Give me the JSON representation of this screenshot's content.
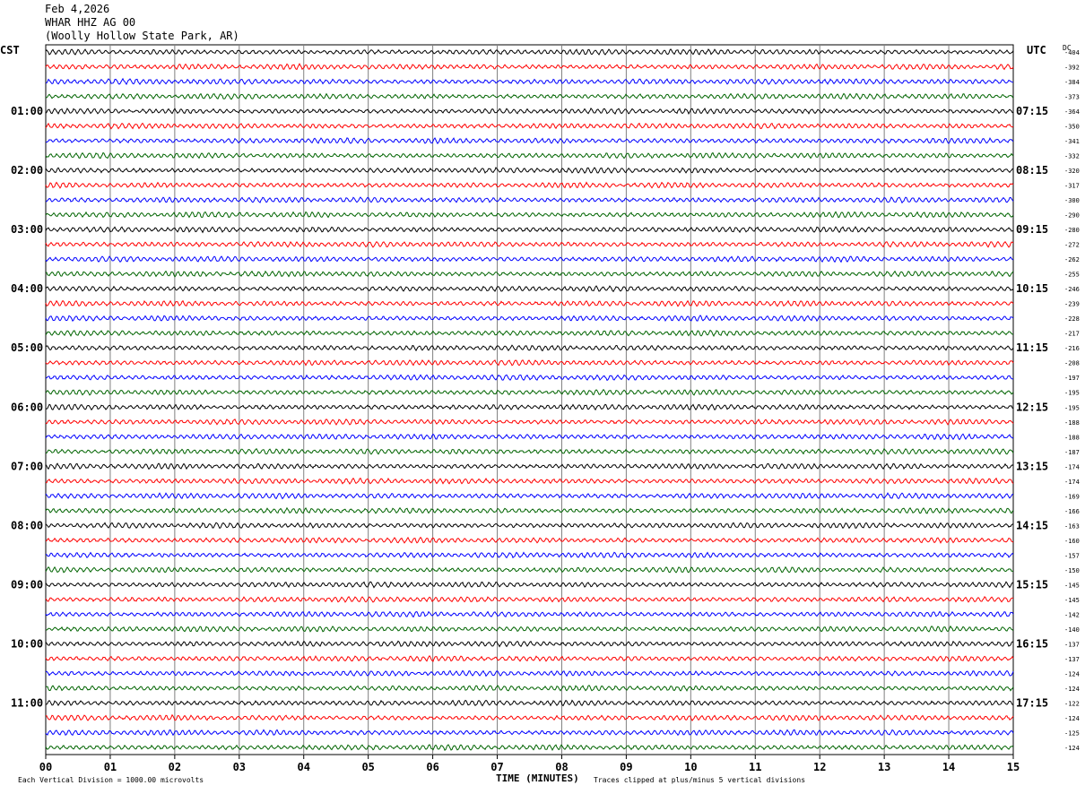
{
  "header": {
    "date": "Feb 4,2026",
    "station": "WHAR HHZ AG 00",
    "location": "(Woolly Hollow State Park, AR)"
  },
  "left_zone_label": "CST",
  "right_zone_label": "UTC",
  "dc_label": "DC",
  "footer": {
    "scale": "Each Vertical Division = 1000.00 microvolts",
    "clip": "Traces clipped at plus/minus 5 vertical divisions",
    "xlabel": "TIME (MINUTES)"
  },
  "colors": {
    "trace_cycle": [
      "#000000",
      "#ff0000",
      "#0000ff",
      "#006400"
    ],
    "grid": "#808080"
  },
  "chart_data": {
    "type": "line",
    "title": "WHAR HHZ AG 00",
    "subtitle": "(Woolly Hollow State Park, AR)",
    "xlabel": "TIME (MINUTES)",
    "x_ticks": [
      "00",
      "01",
      "02",
      "03",
      "04",
      "05",
      "06",
      "07",
      "08",
      "09",
      "10",
      "11",
      "12",
      "13",
      "14",
      "15"
    ],
    "xlim": [
      0,
      15
    ],
    "trace_count": 48,
    "minutes_per_trace": 15,
    "left_hour_labels": [
      "01:00",
      "02:00",
      "03:00",
      "04:00",
      "05:00",
      "06:00",
      "07:00",
      "08:00",
      "09:00",
      "10:00",
      "11:00"
    ],
    "right_hour_labels": [
      "07:15",
      "08:15",
      "09:15",
      "10:15",
      "11:15",
      "12:15",
      "13:15",
      "14:15",
      "15:15",
      "16:15",
      "17:15"
    ],
    "dc_offsets": [
      -404,
      -392,
      -384,
      -373,
      -364,
      -350,
      -341,
      -332,
      -320,
      -317,
      -300,
      -290,
      -280,
      -272,
      -262,
      -255,
      -246,
      -239,
      -228,
      -217,
      -216,
      -208,
      -197,
      -195,
      -195,
      -188,
      -188,
      -187,
      -174,
      -174,
      -169,
      -166,
      -163,
      -160,
      -157,
      -150,
      -145,
      -145,
      -142,
      -140,
      -137,
      -137,
      -124,
      -124,
      -122,
      -124,
      -125,
      -124
    ]
  }
}
